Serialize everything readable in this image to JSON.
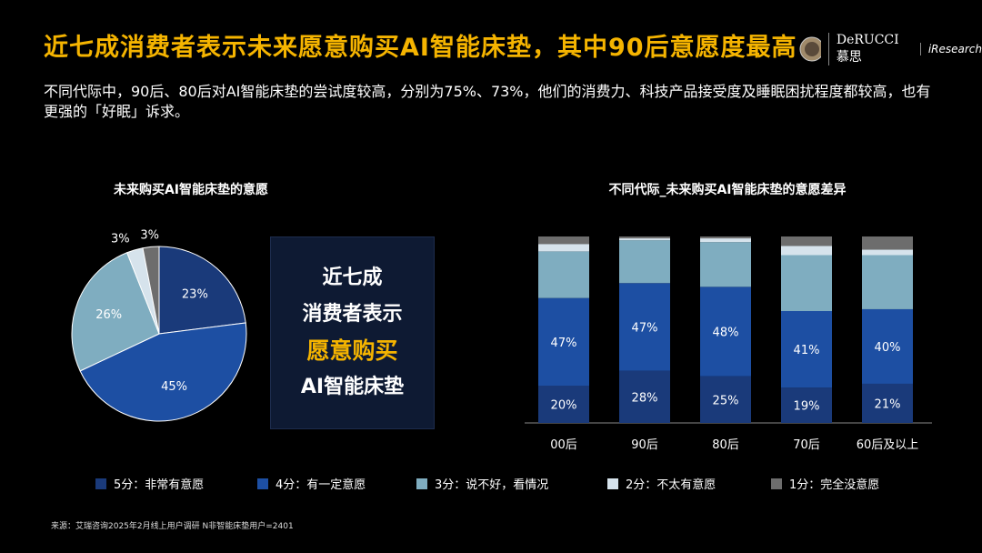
{
  "header": {
    "title": "近七成消费者表示未来愿意购买AI智能床垫，其中90后意愿度最高",
    "subtitle": "不同代际中，90后、80后对AI智能床垫的尝试度较高，分别为75%、73%，他们的消费力、科技产品接受度及睡眠困扰程度都较高，也有更强的「好眠」诉求。",
    "logo_derucci": "DeRUCCI 慕思",
    "logo_iresearch": "iResearch"
  },
  "callout": {
    "line1": "近七成",
    "line2": "消费者表示",
    "line3": "愿意购买",
    "line4": "AI智能床垫"
  },
  "source": "来源：艾瑞咨询2025年2月线上用户调研 N非智能床垫用户=2401",
  "colors": {
    "5": "#1a3a7a",
    "4": "#1d4fa3",
    "3": "#7fadc0",
    "2": "#d6e3ec",
    "1": "#6d6d6d",
    "accent": "#f5b400"
  },
  "chart_data": [
    {
      "type": "pie",
      "title": "未来购买AI智能床垫的意愿",
      "categories": [
        "5分：非常有意愿",
        "4分：有一定意愿",
        "3分：说不好，看情况",
        "2分：不太有意愿",
        "1分：完全没意愿"
      ],
      "values": [
        23,
        45,
        26,
        3,
        3
      ],
      "labels": [
        "23%",
        "45%",
        "26%",
        "3%",
        "3%"
      ]
    },
    {
      "type": "bar",
      "stacked": true,
      "title": "不同代际_未来购买AI智能床垫的意愿差异",
      "categories": [
        "00后",
        "90后",
        "80后",
        "70后",
        "60后及以上"
      ],
      "series": [
        {
          "name": "5分：非常有意愿",
          "values": [
            20,
            28,
            25,
            19,
            21
          ]
        },
        {
          "name": "4分：有一定意愿",
          "values": [
            47,
            47,
            48,
            41,
            40
          ]
        },
        {
          "name": "3分：说不好，看情况",
          "values": [
            25,
            23,
            24,
            30,
            29
          ]
        },
        {
          "name": "2分：不太有意愿",
          "values": [
            4,
            1,
            2,
            5,
            3
          ]
        },
        {
          "name": "1分：完全没意愿",
          "values": [
            4,
            1,
            1,
            5,
            7
          ]
        }
      ],
      "ylim": [
        0,
        100
      ],
      "legend": "bottom"
    }
  ]
}
